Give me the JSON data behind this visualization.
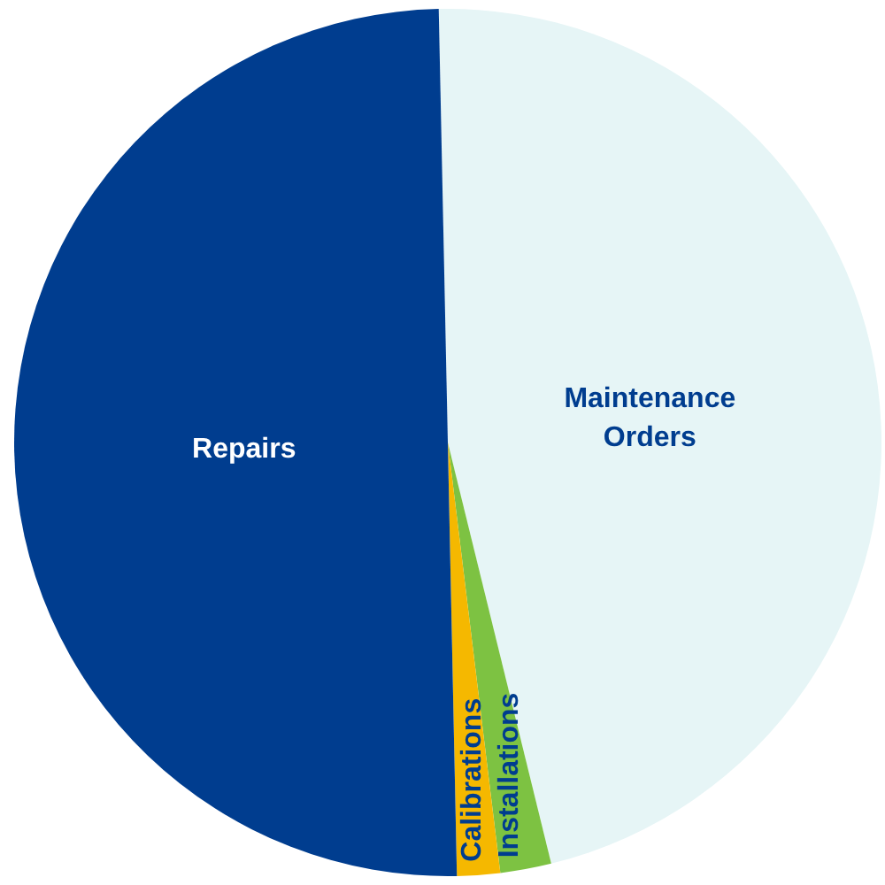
{
  "chart_data": {
    "type": "pie",
    "categories": [
      "Maintenance Orders",
      "Installations",
      "Calibrations",
      "Repairs"
    ],
    "values": [
      46.5,
      1.9,
      1.6,
      50.0
    ],
    "colors": [
      "#e6f5f6",
      "#7dc242",
      "#f5b800",
      "#003d8f"
    ]
  }
}
